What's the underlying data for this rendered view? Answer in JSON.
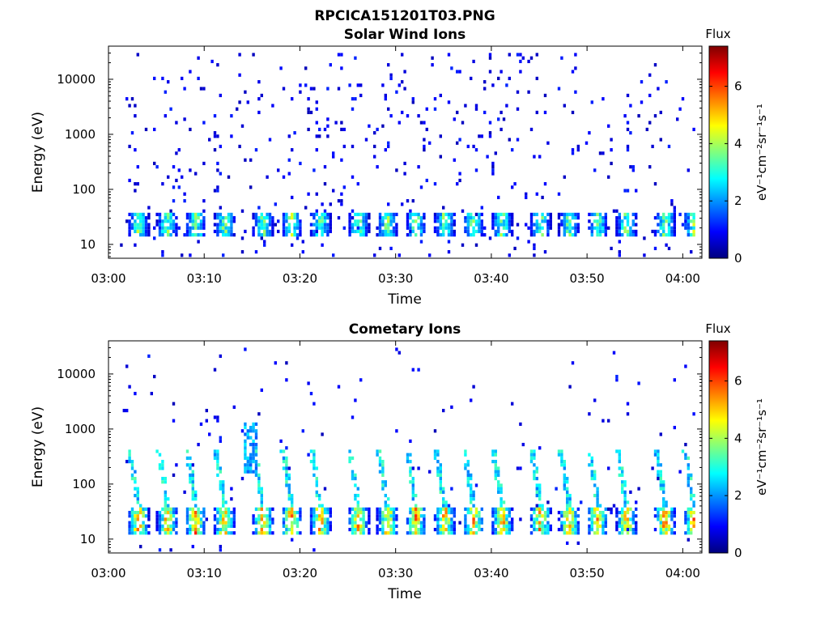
{
  "figure": {
    "title": "RPCICA151201T03.PNG"
  },
  "colors": {
    "axis": "#000000",
    "colormap": [
      "#00007f",
      "#0000ff",
      "#007fff",
      "#00ffff",
      "#7fff7f",
      "#ffff00",
      "#ff7f00",
      "#ff0000",
      "#7f0000"
    ]
  },
  "chart_data": [
    {
      "type": "heatmap",
      "title": "Solar Wind Ions",
      "xlabel": "Time",
      "ylabel": "Energy (eV)",
      "xticks": [
        "03:00",
        "03:10",
        "03:20",
        "03:30",
        "03:40",
        "03:50",
        "04:00"
      ],
      "xlim_minutes": [
        0,
        62
      ],
      "yticks": [
        "10",
        "100",
        "1000",
        "10000"
      ],
      "yscale": "log",
      "ylim": [
        5.6,
        40000
      ],
      "colorbar": {
        "label": "Flux",
        "unit": "eV⁻¹cm⁻²sr⁻¹s⁻¹",
        "ticks": [
          "0",
          "2",
          "4",
          "6"
        ],
        "range": [
          0,
          7.4
        ]
      },
      "pattern": {
        "data_start_minute": 1.2,
        "data_end_minute": 61.5,
        "sweep_minutes": [
          3,
          6,
          9,
          12,
          16,
          19,
          22,
          26,
          29,
          32,
          35,
          38,
          41,
          45,
          48,
          51,
          54,
          58,
          61
        ],
        "band_energy_eV": [
          13,
          40
        ],
        "band_flux_max": 4.6,
        "background": "sparse low-flux (~0.5-1) counts 6 eV - 30 keV"
      }
    },
    {
      "type": "heatmap",
      "title": "Cometary Ions",
      "xlabel": "Time",
      "ylabel": "Energy (eV)",
      "xticks": [
        "03:00",
        "03:10",
        "03:20",
        "03:30",
        "03:40",
        "03:50",
        "04:00"
      ],
      "xlim_minutes": [
        0,
        62
      ],
      "yticks": [
        "10",
        "100",
        "1000",
        "10000"
      ],
      "yscale": "log",
      "ylim": [
        5.6,
        40000
      ],
      "colorbar": {
        "label": "Flux",
        "unit": "eV⁻¹cm⁻²sr⁻¹s⁻¹",
        "ticks": [
          "0",
          "2",
          "4",
          "6"
        ],
        "range": [
          0,
          7.4
        ]
      },
      "pattern": {
        "data_start_minute": 1.2,
        "data_end_minute": 61.5,
        "sweep_minutes": [
          3,
          6,
          9,
          12,
          16,
          19,
          22,
          26,
          29,
          32,
          35,
          38,
          41,
          45,
          48,
          51,
          54,
          58,
          61
        ],
        "band_energy_eV": [
          12,
          40
        ],
        "band_flux_max": 6.5,
        "tail_energy_eV": [
          40,
          400
        ],
        "background": "sparse low-flux counts up to 10 keV; burst to ~1.2 keV near 03:14"
      }
    }
  ]
}
